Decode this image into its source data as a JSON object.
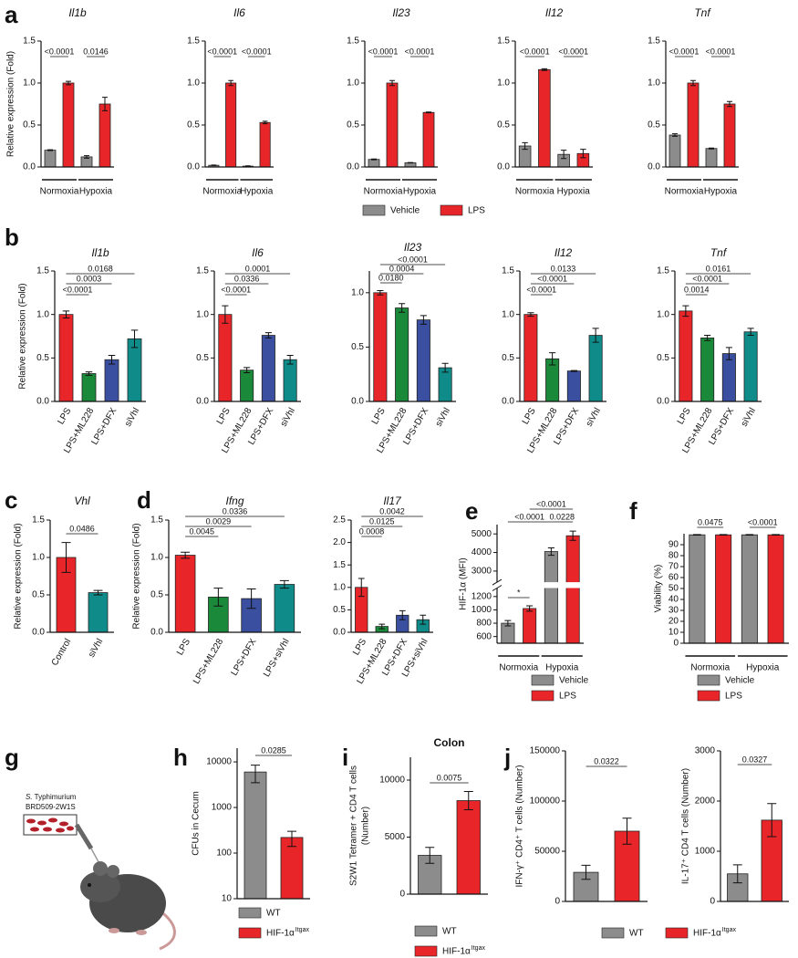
{
  "chart_data": [
    {
      "type": "grouped_bar",
      "panel": "a",
      "title": "Il1b",
      "ylabel": "Relative expression (Fold)",
      "categories": [
        "Normoxia",
        "Hypoxia"
      ],
      "series": [
        {
          "color": "#8c8c8c",
          "values": [
            0.2,
            0.12
          ],
          "errors": [
            0.005,
            0.015
          ]
        },
        {
          "color": "#e8262a",
          "values": [
            1.0,
            0.75
          ],
          "errors": [
            0.02,
            0.08
          ]
        }
      ],
      "ylim": [
        0,
        1.5
      ],
      "yticks": [
        {
          "value": 0,
          "label": "0.0"
        },
        {
          "value": 0.5,
          "label": "0.5"
        },
        {
          "value": 1,
          "label": "1.0"
        },
        {
          "value": 1.5,
          "label": "1.5"
        }
      ],
      "p_values": [
        "<0.0001",
        "0.0146"
      ]
    },
    {
      "type": "grouped_bar",
      "title": "Il6",
      "categories": [
        "Normoxia",
        "Hypoxia"
      ],
      "series": [
        {
          "color": "#8c8c8c",
          "values": [
            0.02,
            0.01
          ],
          "errors": [
            0.003,
            0.003
          ]
        },
        {
          "color": "#e8262a",
          "values": [
            1.0,
            0.53
          ],
          "errors": [
            0.03,
            0.015
          ]
        }
      ],
      "ylim": [
        0,
        1.5
      ],
      "yticks": [
        {
          "value": 0,
          "label": "0.0"
        },
        {
          "value": 0.5,
          "label": "0.5"
        },
        {
          "value": 1,
          "label": "1.0"
        },
        {
          "value": 1.5,
          "label": "1.5"
        }
      ],
      "p_values": [
        "<0.0001",
        "<0.0001"
      ]
    },
    {
      "type": "grouped_bar",
      "title": "Il23",
      "categories": [
        "Normoxia",
        "Hypoxia"
      ],
      "series": [
        {
          "name": "Vehicle",
          "color": "#8c8c8c",
          "values": [
            0.09,
            0.05
          ],
          "errors": [
            0.005,
            0.003
          ]
        },
        {
          "name": "LPS",
          "color": "#e8262a",
          "values": [
            1.0,
            0.65
          ],
          "errors": [
            0.03,
            0.005
          ]
        }
      ],
      "ylim": [
        0,
        1.5
      ],
      "yticks": [
        {
          "value": 0,
          "label": "0.0"
        },
        {
          "value": 0.5,
          "label": "0.5"
        },
        {
          "value": 1,
          "label": "1.0"
        },
        {
          "value": 1.5,
          "label": "1.5"
        }
      ],
      "p_values": [
        "<0.0001",
        "<0.0001"
      ]
    },
    {
      "type": "grouped_bar",
      "title": "Il12",
      "categories": [
        "Normoxia",
        "Hypoxia"
      ],
      "series": [
        {
          "color": "#8c8c8c",
          "values": [
            0.25,
            0.15
          ],
          "errors": [
            0.04,
            0.05
          ]
        },
        {
          "color": "#e8262a",
          "values": [
            1.16,
            0.16
          ],
          "errors": [
            0.01,
            0.05
          ]
        }
      ],
      "ylim": [
        0,
        1.5
      ],
      "yticks": [
        {
          "value": 0,
          "label": "0.0"
        },
        {
          "value": 0.5,
          "label": "0.5"
        },
        {
          "value": 1,
          "label": "1.0"
        },
        {
          "value": 1.5,
          "label": "1.5"
        }
      ],
      "p_values": [
        "<0.0001",
        "<0.0001"
      ]
    },
    {
      "type": "grouped_bar",
      "title": "Tnf",
      "categories": [
        "Normoxia",
        "Hypoxia"
      ],
      "series": [
        {
          "color": "#8c8c8c",
          "values": [
            0.38,
            0.22
          ],
          "errors": [
            0.015,
            0.005
          ]
        },
        {
          "color": "#e8262a",
          "values": [
            1.0,
            0.75
          ],
          "errors": [
            0.03,
            0.03
          ]
        }
      ],
      "ylim": [
        0,
        1.5
      ],
      "yticks": [
        {
          "value": 0,
          "label": "0.0"
        },
        {
          "value": 0.5,
          "label": "0.5"
        },
        {
          "value": 1,
          "label": "1.0"
        },
        {
          "value": 1.5,
          "label": "1.5"
        }
      ],
      "p_values": [
        "<0.0001",
        "<0.0001"
      ]
    },
    {
      "type": "bar",
      "panel": "b",
      "title": "Il1b",
      "ylabel": "Relative expression (Fold)",
      "categories": [
        "LPS",
        "LPS+ML228",
        "LPS+DFX",
        "siVhl"
      ],
      "values": [
        1.0,
        0.32,
        0.48,
        0.72
      ],
      "errors": [
        0.04,
        0.02,
        0.05,
        0.1
      ],
      "colors": [
        "#e8262a",
        "#1a8a3a",
        "#3a4fa0",
        "#0f8c8a"
      ],
      "ylim": [
        0,
        1.5
      ],
      "yticks": [
        {
          "value": 0,
          "label": "0.0"
        },
        {
          "value": 0.5,
          "label": "0.5"
        },
        {
          "value": 1,
          "label": "1.0"
        },
        {
          "value": 1.5,
          "label": "1.5"
        }
      ],
      "p_values": [
        "0.0168",
        "0.0003",
        "<0.0001"
      ]
    },
    {
      "type": "bar",
      "title": "Il6",
      "categories": [
        "LPS",
        "LPS+ML228",
        "LPS+DFX",
        "siVhl"
      ],
      "values": [
        1.0,
        0.36,
        0.76,
        0.48
      ],
      "errors": [
        0.1,
        0.03,
        0.03,
        0.05
      ],
      "colors": [
        "#e8262a",
        "#1a8a3a",
        "#3a4fa0",
        "#0f8c8a"
      ],
      "ylim": [
        0,
        1.5
      ],
      "yticks": [
        {
          "value": 0,
          "label": "0.0"
        },
        {
          "value": 0.5,
          "label": "0.5"
        },
        {
          "value": 1,
          "label": "1.0"
        },
        {
          "value": 1.5,
          "label": "1.5"
        }
      ],
      "p_values": [
        "0.0001",
        "0.0336",
        "<0.0001"
      ]
    },
    {
      "type": "bar",
      "title": "Il23",
      "categories": [
        "LPS",
        "LPS+ML228",
        "LPS+DFX",
        "siVhl"
      ],
      "values": [
        1.0,
        0.86,
        0.75,
        0.31
      ],
      "errors": [
        0.02,
        0.04,
        0.04,
        0.04
      ],
      "colors": [
        "#e8262a",
        "#1a8a3a",
        "#3a4fa0",
        "#0f8c8a"
      ],
      "ylim": [
        0,
        1.2
      ],
      "yticks": [
        {
          "value": 0,
          "label": "0.0"
        },
        {
          "value": 0.5,
          "label": "0.5"
        },
        {
          "value": 1,
          "label": "1.0"
        }
      ],
      "p_values": [
        "<0.0001",
        "0.0004",
        "0.0180"
      ]
    },
    {
      "type": "bar",
      "title": "Il12",
      "categories": [
        "LPS",
        "LPS+ML228",
        "LPS+DFX",
        "siVhl"
      ],
      "values": [
        1.0,
        0.49,
        0.35,
        0.76
      ],
      "errors": [
        0.02,
        0.07,
        0.005,
        0.08
      ],
      "colors": [
        "#e8262a",
        "#1a8a3a",
        "#3a4fa0",
        "#0f8c8a"
      ],
      "ylim": [
        0,
        1.5
      ],
      "yticks": [
        {
          "value": 0,
          "label": "0.0"
        },
        {
          "value": 0.5,
          "label": "0.5"
        },
        {
          "value": 1,
          "label": "1.0"
        },
        {
          "value": 1.5,
          "label": "1.5"
        }
      ],
      "p_values": [
        "0.0133",
        "<0.0001",
        "<0.0001"
      ]
    },
    {
      "type": "bar",
      "title": "Tnf",
      "categories": [
        "LPS",
        "LPS+ML228",
        "LPS+DFX",
        "siVhl"
      ],
      "values": [
        1.04,
        0.73,
        0.55,
        0.8
      ],
      "errors": [
        0.06,
        0.03,
        0.07,
        0.04
      ],
      "colors": [
        "#e8262a",
        "#1a8a3a",
        "#3a4fa0",
        "#0f8c8a"
      ],
      "ylim": [
        0,
        1.5
      ],
      "yticks": [
        {
          "value": 0,
          "label": "0.0"
        },
        {
          "value": 0.5,
          "label": "0.5"
        },
        {
          "value": 1,
          "label": "1.0"
        },
        {
          "value": 1.5,
          "label": "1.5"
        }
      ],
      "p_values": [
        "0.0161",
        "<0.0001",
        "0.0014"
      ]
    },
    {
      "type": "bar",
      "panel": "c",
      "title": "Vhl",
      "ylabel": "Relative expression (Fold)",
      "categories": [
        "Control",
        "siVhl"
      ],
      "values": [
        1.0,
        0.53
      ],
      "errors": [
        0.2,
        0.03
      ],
      "colors": [
        "#e8262a",
        "#0f8c8a"
      ],
      "ylim": [
        0,
        1.5
      ],
      "yticks": [
        {
          "value": 0,
          "label": "0.0"
        },
        {
          "value": 0.5,
          "label": "0.5"
        },
        {
          "value": 1,
          "label": "1.0"
        },
        {
          "value": 1.5,
          "label": "1.5"
        }
      ],
      "p_values": [
        "0.0486"
      ]
    },
    {
      "type": "bar",
      "panel": "d",
      "title": "Ifng",
      "ylabel": "Relative expression (Fold)",
      "categories": [
        "LPS",
        "LPS+ML228",
        "LPS+DFX",
        "LPS+siVhl"
      ],
      "values": [
        1.03,
        0.47,
        0.45,
        0.64
      ],
      "errors": [
        0.04,
        0.12,
        0.13,
        0.05
      ],
      "colors": [
        "#e8262a",
        "#1a8a3a",
        "#3a4fa0",
        "#0f8c8a"
      ],
      "ylim": [
        0,
        1.5
      ],
      "yticks": [
        {
          "value": 0,
          "label": "0.0"
        },
        {
          "value": 0.5,
          "label": "0.5"
        },
        {
          "value": 1,
          "label": "1.0"
        },
        {
          "value": 1.5,
          "label": "1.5"
        }
      ],
      "p_values": [
        "0.0336",
        "0.0029",
        "0.0045"
      ]
    },
    {
      "type": "bar",
      "title": "Il17",
      "categories": [
        "LPS",
        "LPS+ML228",
        "LPS+DFX",
        "LPS+siVhl"
      ],
      "values": [
        1.0,
        0.13,
        0.38,
        0.28
      ],
      "errors": [
        0.2,
        0.05,
        0.1,
        0.1
      ],
      "colors": [
        "#e8262a",
        "#1a8a3a",
        "#3a4fa0",
        "#0f8c8a"
      ],
      "ylim": [
        0,
        2.5
      ],
      "yticks": [
        {
          "value": 0,
          "label": "0.0"
        },
        {
          "value": 0.5,
          "label": "0.5"
        },
        {
          "value": 1,
          "label": "1.0"
        },
        {
          "value": 1.5,
          "label": "1.5"
        },
        {
          "value": 2,
          "label": "2.0"
        },
        {
          "value": 2.5,
          "label": "2.5"
        }
      ],
      "p_values": [
        "0.0042",
        "0.0125",
        "0.0008"
      ]
    },
    {
      "type": "grouped_bar",
      "panel": "e",
      "ylabel": "HIF-1α (MFI)",
      "categories": [
        "Normoxia",
        "Hypoxia"
      ],
      "series": [
        {
          "name": "Vehicle",
          "color": "#8c8c8c",
          "values": [
            800,
            4050
          ],
          "errors": [
            40,
            200
          ]
        },
        {
          "name": "LPS",
          "color": "#e8262a",
          "values": [
            1020,
            4900
          ],
          "errors": [
            40,
            250
          ]
        }
      ],
      "ylim": [
        500,
        5500
      ],
      "axis_break": [
        1300,
        2500
      ],
      "yticks": [
        600,
        800,
        1000,
        1200,
        3000,
        4000,
        5000
      ],
      "p_values": [
        "<0.0001",
        "<0.0001",
        "0.0228",
        "*"
      ]
    },
    {
      "type": "grouped_bar",
      "panel": "f",
      "ylabel": "Viability (%)",
      "categories": [
        "Normoxia",
        "Hypoxia"
      ],
      "series": [
        {
          "name": "Vehicle",
          "color": "#8c8c8c",
          "values": [
            99,
            99
          ],
          "errors": [
            0.3,
            0.3
          ]
        },
        {
          "name": "LPS",
          "color": "#e8262a",
          "values": [
            99,
            99
          ],
          "errors": [
            0.3,
            0.3
          ]
        }
      ],
      "ylim": [
        0,
        100
      ],
      "yticks": [
        0,
        10,
        20,
        30,
        40,
        50,
        60,
        70,
        80,
        90
      ],
      "p_values": [
        "0.0475",
        "<0.0001"
      ]
    },
    {
      "type": "grouped_bar",
      "panel": "h",
      "ylabel": "CFUs in Cecum",
      "yscale": "log",
      "series": [
        {
          "name": "WT",
          "color": "#8c8c8c",
          "values": [
            6000
          ],
          "errors": [
            2500
          ]
        },
        {
          "name": "HIF-1α",
          "name_superscript": "Itgax",
          "color": "#e8262a",
          "values": [
            220
          ],
          "errors": [
            80
          ]
        }
      ],
      "ylim": [
        10,
        20000
      ],
      "yticks": [
        10,
        100,
        1000,
        10000
      ],
      "p_values": [
        "0.0285"
      ]
    },
    {
      "type": "grouped_bar",
      "panel": "i",
      "title": "Colon",
      "ylabel": [
        "S2W1 Tetramer + CD4 T cells",
        "(Number)"
      ],
      "series": [
        {
          "name": "WT",
          "color": "#8c8c8c",
          "values": [
            3400
          ],
          "errors": [
            700
          ]
        },
        {
          "name": "HIF-1α",
          "name_superscript": "Itgax",
          "color": "#e8262a",
          "values": [
            8200
          ],
          "errors": [
            800
          ]
        }
      ],
      "ylim": [
        0,
        12000
      ],
      "yticks": [
        0,
        5000,
        10000
      ],
      "p_values": [
        "0.0075"
      ]
    },
    {
      "type": "grouped_bar",
      "panel": "j",
      "ylabel": "IFN-γ⁺ CD4⁺ T cells (Number)",
      "series": [
        {
          "name": "WT",
          "color": "#8c8c8c",
          "values": [
            29000
          ],
          "errors": [
            7000
          ]
        },
        {
          "name": "HIF-1α",
          "name_superscript": "Itgax",
          "color": "#e8262a",
          "values": [
            70000
          ],
          "errors": [
            13000
          ]
        }
      ],
      "ylim": [
        0,
        150000
      ],
      "yticks": [
        0,
        50000,
        100000,
        150000
      ],
      "p_values": [
        "0.0322"
      ]
    },
    {
      "type": "grouped_bar",
      "ylabel": "IL-17⁺ CD4 T cells  (Number)",
      "series": [
        {
          "color": "#8c8c8c",
          "values": [
            550
          ],
          "errors": [
            180
          ]
        },
        {
          "color": "#e8262a",
          "values": [
            1620
          ],
          "errors": [
            330
          ]
        }
      ],
      "ylim": [
        0,
        3000
      ],
      "yticks": [
        0,
        1000,
        2000,
        3000
      ],
      "p_values": [
        "0.0327"
      ]
    }
  ],
  "illustration": {
    "panel": "g",
    "genus": "S.",
    "species": "Typhimurium",
    "strain": "BRD509-2W1S"
  }
}
